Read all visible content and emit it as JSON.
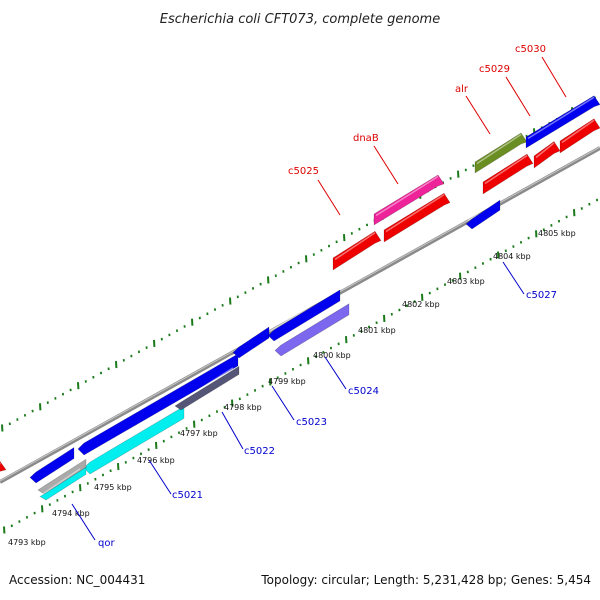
{
  "title": "Escherichia coli CFT073, complete genome",
  "footer": {
    "accession": "Accession: NC_004431",
    "summary": "Topology: circular; Length: 5,231,428 bp; Genes: 5,454"
  },
  "colors": {
    "backbone": "#8f8f8f",
    "tick": "#1a7a1a",
    "forward_label": "#dd0000",
    "reverse_label": "#0000cc"
  },
  "scale_labels": [
    "4793 kbp",
    "4794 kbp",
    "4795 kbp",
    "4796 kbp",
    "4797 kbp",
    "4798 kbp",
    "4799 kbp",
    "4800 kbp",
    "4801 kbp",
    "4802 kbp",
    "4803 kbp",
    "4804 kbp",
    "4805 kbp"
  ],
  "top_gene_labels": [
    {
      "id": "c5025",
      "label": "c5025"
    },
    {
      "id": "dnaB",
      "label": "dnaB"
    },
    {
      "id": "alr",
      "label": "alr"
    },
    {
      "id": "c5029",
      "label": "c5029"
    },
    {
      "id": "c5030",
      "label": "c5030"
    }
  ],
  "bottom_gene_labels": [
    {
      "id": "qor",
      "label": "qor"
    },
    {
      "id": "c5021",
      "label": "c5021"
    },
    {
      "id": "c5022",
      "label": "c5022"
    },
    {
      "id": "c5023",
      "label": "c5023"
    },
    {
      "id": "c5024",
      "label": "c5024"
    },
    {
      "id": "c5027",
      "label": "c5027"
    }
  ]
}
